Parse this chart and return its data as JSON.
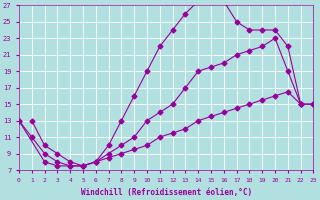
{
  "xlabel": "Windchill (Refroidissement éolien,°C)",
  "bg_color": "#b2e0e0",
  "grid_color": "#c8e8e8",
  "line_color": "#990099",
  "xlim": [
    0,
    23
  ],
  "ylim": [
    7,
    27
  ],
  "xticks": [
    0,
    1,
    2,
    3,
    4,
    5,
    6,
    7,
    8,
    9,
    10,
    11,
    12,
    13,
    14,
    15,
    16,
    17,
    18,
    19,
    20,
    21,
    22,
    23
  ],
  "yticks": [
    7,
    9,
    11,
    13,
    15,
    17,
    19,
    21,
    23,
    25,
    27
  ],
  "line_top_x": [
    1,
    2,
    3,
    4,
    5,
    6,
    7,
    8,
    9,
    10,
    11,
    12,
    13,
    14,
    15,
    16,
    17,
    18,
    19,
    20,
    21,
    22
  ],
  "line_top_y": [
    13,
    10,
    9,
    8,
    7.5,
    8,
    10,
    13,
    16,
    19,
    22,
    24,
    26,
    27.5,
    27.5,
    27.5,
    25,
    24,
    24,
    24,
    22,
    15
  ],
  "line_mid_x": [
    0,
    1,
    2,
    3,
    4,
    5,
    6,
    7,
    8,
    9,
    10,
    11,
    12,
    13,
    14,
    15,
    16,
    17,
    18,
    19,
    20,
    21,
    22,
    23
  ],
  "line_mid_y": [
    13,
    11,
    9,
    8,
    7.5,
    7.5,
    8,
    9,
    10,
    11,
    13,
    14,
    15,
    17,
    19,
    19.5,
    20,
    21,
    21.5,
    22,
    23,
    19,
    15,
    15
  ],
  "line_bot_x": [
    0,
    2,
    3,
    4,
    5,
    6,
    7,
    8,
    9,
    10,
    11,
    12,
    13,
    14,
    15,
    16,
    17,
    18,
    19,
    20,
    21,
    22,
    23
  ],
  "line_bot_y": [
    13,
    8,
    7.5,
    7.5,
    7.5,
    8,
    8.5,
    9,
    9.5,
    10,
    11,
    11.5,
    12,
    13,
    13.5,
    14,
    14.5,
    15,
    15.5,
    16,
    16.5,
    15,
    15
  ]
}
